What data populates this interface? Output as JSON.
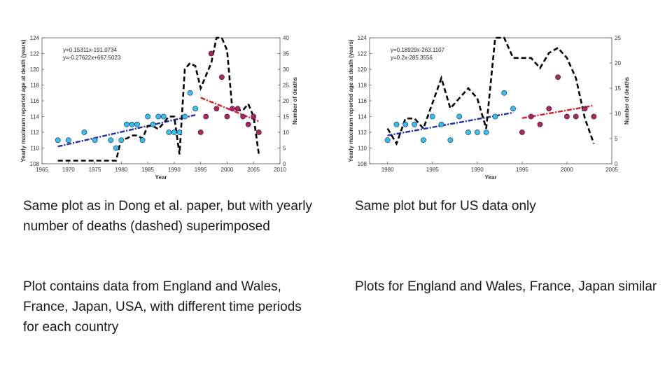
{
  "captions": {
    "left_1": "Same plot as in Dong et al. paper, but with yearly number of deaths (dashed) superimposed",
    "right_1": "Same plot but for US data only",
    "left_2": "Plot contains data from England and Wales, France, Japan, USA, with different time periods for each country",
    "right_2": "Plots for England and Wales, France, Japan similar"
  },
  "colors": {
    "blue_points": "#33c0f2",
    "red_points": "#b0245a",
    "trend_blue": "#1f2fa8",
    "trend_red": "#d81f26",
    "deaths_line": "#000000"
  },
  "chart_data": [
    {
      "type": "scatter",
      "xlabel": "Year",
      "ylabel": "Yearly maximum reported age at death (years)",
      "y2label": "Number of deaths",
      "xlim": [
        1965,
        2010
      ],
      "xticks": [
        1965,
        1970,
        1975,
        1980,
        1985,
        1990,
        1995,
        2000,
        2005,
        2010
      ],
      "ylim": [
        108,
        124
      ],
      "yticks": [
        108,
        110,
        112,
        114,
        116,
        118,
        120,
        122,
        124
      ],
      "y2lim": [
        0,
        40
      ],
      "y2ticks": [
        0,
        5,
        10,
        15,
        20,
        25,
        30,
        35,
        40
      ],
      "equations": [
        "y=0.15311x-191.0734",
        "y=-0.27622x+667.5023"
      ],
      "series": [
        {
          "kind": "points",
          "color": "blue_points",
          "x": [
            1968,
            1970,
            1973,
            1975,
            1978,
            1979,
            1980,
            1981,
            1982,
            1983,
            1984,
            1985,
            1986,
            1987,
            1988,
            1989,
            1990,
            1991,
            1992,
            1993,
            1994
          ],
          "y": [
            111,
            111,
            112,
            111,
            111,
            110,
            111,
            113,
            113,
            113,
            111,
            114,
            113,
            114,
            114,
            112,
            112,
            112,
            114,
            117,
            115
          ]
        },
        {
          "kind": "points",
          "color": "red_points",
          "x": [
            1995,
            1996,
            1997,
            1998,
            1999,
            2000,
            2001,
            2002,
            2003,
            2004,
            2005,
            2006
          ],
          "y": [
            112,
            114,
            122,
            115,
            119,
            114,
            115,
            115,
            114,
            113,
            114,
            112
          ]
        },
        {
          "kind": "trend",
          "color": "trend_blue",
          "x": [
            1968,
            1994
          ],
          "y": [
            110.2,
            114.2
          ]
        },
        {
          "kind": "trend",
          "color": "trend_red",
          "x": [
            1995,
            2006
          ],
          "y": [
            116.4,
            113.4
          ]
        },
        {
          "kind": "deaths",
          "axis": "y2",
          "color": "deaths_line",
          "x": [
            1968,
            1970,
            1972,
            1974,
            1976,
            1978,
            1979,
            1980,
            1981,
            1982,
            1983,
            1984,
            1985,
            1986,
            1987,
            1988,
            1989,
            1990,
            1991,
            1992,
            1993,
            1994,
            1995,
            1996,
            1997,
            1998,
            1999,
            2000,
            2001,
            2002,
            2003,
            2004,
            2005,
            2006
          ],
          "y": [
            1,
            1,
            1,
            1,
            1,
            1,
            1,
            8,
            8,
            9,
            9,
            8,
            12,
            12,
            11,
            13,
            15,
            15,
            3,
            30,
            32,
            31,
            24,
            28,
            32,
            40,
            40,
            36,
            17,
            17,
            17,
            19,
            15,
            3
          ]
        }
      ]
    },
    {
      "type": "scatter",
      "xlabel": "Year",
      "ylabel": "Yearly maximum reported age at death (years)",
      "y2label": "Number of deaths",
      "xlim": [
        1978,
        2005
      ],
      "xticks": [
        1980,
        1985,
        1990,
        1995,
        2000,
        2005
      ],
      "ylim": [
        108,
        124
      ],
      "yticks": [
        108,
        110,
        112,
        114,
        116,
        118,
        120,
        122,
        124
      ],
      "y2lim": [
        0,
        25
      ],
      "y2ticks": [
        0,
        5,
        10,
        15,
        20,
        25
      ],
      "equations": [
        "y=0.18929x-263.1107",
        "y=0.2x-285.3556"
      ],
      "series": [
        {
          "kind": "points",
          "color": "blue_points",
          "x": [
            1980,
            1981,
            1982,
            1983,
            1984,
            1985,
            1986,
            1987,
            1988,
            1989,
            1990,
            1991,
            1992,
            1993,
            1994
          ],
          "y": [
            111,
            113,
            113,
            113,
            111,
            114,
            113,
            111,
            114,
            112,
            112,
            112,
            114,
            117,
            115
          ]
        },
        {
          "kind": "points",
          "color": "red_points",
          "x": [
            1995,
            1996,
            1997,
            1998,
            1999,
            2000,
            2001,
            2002,
            2003
          ],
          "y": [
            112,
            114,
            113,
            115,
            119,
            114,
            114,
            115,
            114
          ]
        },
        {
          "kind": "trend",
          "color": "trend_blue",
          "x": [
            1980,
            1994
          ],
          "y": [
            111.6,
            114.5
          ]
        },
        {
          "kind": "trend",
          "color": "trend_red",
          "x": [
            1995,
            2003
          ],
          "y": [
            113.8,
            115.4
          ]
        },
        {
          "kind": "deaths",
          "axis": "y2",
          "color": "deaths_line",
          "x": [
            1980,
            1981,
            1982,
            1983,
            1984,
            1985,
            1986,
            1987,
            1988,
            1989,
            1990,
            1991,
            1992,
            1993,
            1994,
            1995,
            1996,
            1997,
            1998,
            1999,
            2000,
            2001,
            2002,
            2003
          ],
          "y": [
            7,
            4,
            9,
            9,
            7,
            12,
            17,
            11,
            13,
            15,
            13,
            7,
            25,
            25,
            21,
            21,
            21,
            19,
            22,
            23,
            21,
            17,
            9,
            4
          ]
        }
      ]
    }
  ]
}
